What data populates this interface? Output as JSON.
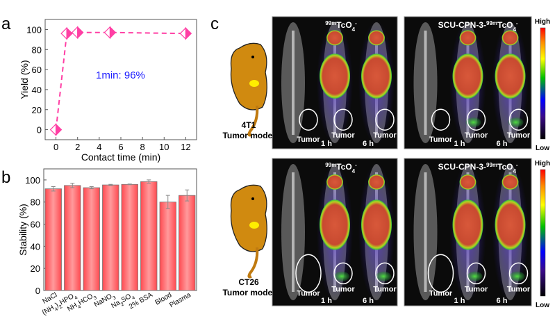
{
  "panel_labels": {
    "a": "a",
    "b": "b",
    "c": "c"
  },
  "chart_data": [
    {
      "type": "line",
      "panel": "a",
      "x": [
        0,
        1,
        2,
        5,
        12
      ],
      "y": [
        0,
        96,
        97,
        97,
        96
      ],
      "xlabel": "Contact time (min)",
      "ylabel": "Yield (%)",
      "xlim": [
        -1,
        13
      ],
      "ylim": [
        -10,
        110
      ],
      "xticks": [
        "0",
        "2",
        "4",
        "6",
        "8",
        "10",
        "12"
      ],
      "yticks": [
        "0",
        "20",
        "40",
        "60",
        "80",
        "100"
      ],
      "annotation": "1min: 96%",
      "color": "#ff3fa4",
      "annotation_color": "#1a1aff"
    },
    {
      "type": "bar",
      "panel": "b",
      "categories": [
        "NaCl",
        "(NH4)2HPO4",
        "NH4HCO3",
        "NaNO3",
        "Na2SO4",
        "2% BSA",
        "Blood",
        "Plasma"
      ],
      "values": [
        92,
        95,
        93,
        95.5,
        96,
        98.5,
        80,
        86
      ],
      "errors": [
        2,
        2,
        1,
        0.5,
        0.3,
        1.5,
        6,
        5
      ],
      "ylabel": "Stability (%)",
      "ylim": [
        0,
        110
      ],
      "yticks": [
        "0",
        "20",
        "40",
        "60",
        "80",
        "100"
      ],
      "color": "#ff5a5f"
    }
  ],
  "panel_c": {
    "rows": [
      {
        "model_line1": "4T1",
        "model_line2": "Tumor model"
      },
      {
        "model_line1": "CT26",
        "model_line2": "Tumor model"
      }
    ],
    "group_free": "TcO",
    "group_free_sup": "99m",
    "group_free_sub": "4",
    "group_free_charge": "-",
    "group_cpn_prefix": "SCU-CPN-3-",
    "tumor_label": "Tumor",
    "time_1h": "1 h",
    "time_6h": "6 h",
    "colorbar_high": "High",
    "colorbar_low": "Low"
  }
}
